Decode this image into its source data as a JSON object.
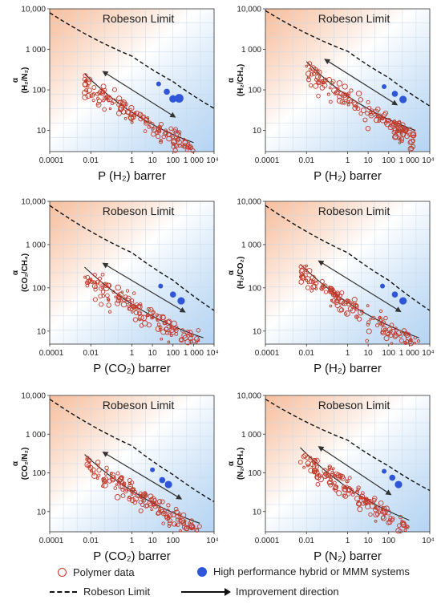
{
  "colors": {
    "polymer": "#c23a2a",
    "mmm": "#2f56d8",
    "upper_region": "#f6b38c",
    "lower_region": "#9cc6ef",
    "robeson_line": "#111111"
  },
  "shared": {
    "robeson_label": "Robeson Limit",
    "y_ticks": [
      "10",
      "100",
      "1 000",
      "10,000"
    ],
    "x_ticks": [
      "0.0001",
      "0.01",
      "1",
      "10",
      "100",
      "1 000",
      "10⁴"
    ],
    "x_ticks_short": [
      "0.0001",
      "0.01",
      "1",
      "10",
      "100",
      "10⁴"
    ]
  },
  "legend": {
    "polymer": "Polymer data",
    "mmm": "High performance hybrid or MMM systems",
    "robeson": "Robeson Limit",
    "arrow": "Improvement direction"
  },
  "chart_data": [
    {
      "type": "scatter",
      "xlabel": "P (H₂) barrer",
      "ylabel": "α (H₂/N₂)",
      "x_scale": "log",
      "y_scale": "log",
      "xlim": [
        0.0001,
        10000
      ],
      "ylim": [
        3,
        10000
      ],
      "robeson_limit": [
        [
          0.0001,
          8000
        ],
        [
          1,
          680
        ],
        [
          100,
          160
        ],
        [
          10000,
          35
        ]
      ],
      "hybrid_points": [
        [
          20,
          140
        ],
        [
          50,
          90
        ],
        [
          100,
          60
        ],
        [
          200,
          62
        ]
      ],
      "polymer_trend": [
        [
          0.005,
          250
        ],
        [
          1000,
          5
        ]
      ]
    },
    {
      "type": "scatter",
      "xlabel": "P (H₂) barrer",
      "ylabel": "α (H₂/CH₄)",
      "x_scale": "log",
      "y_scale": "log",
      "xlim": [
        0.0001,
        10000
      ],
      "ylim": [
        3,
        10000
      ],
      "robeson_limit": [
        [
          0.0001,
          9000
        ],
        [
          1,
          900
        ],
        [
          100,
          200
        ],
        [
          10000,
          40
        ]
      ],
      "hybrid_points": [
        [
          60,
          120
        ],
        [
          200,
          80
        ],
        [
          500,
          58
        ]
      ],
      "polymer_trend": [
        [
          0.01,
          500
        ],
        [
          2000,
          10
        ]
      ]
    },
    {
      "type": "scatter",
      "xlabel": "P (CO₂) barrer",
      "ylabel": "α (CO₂/CH₄)",
      "x_scale": "log",
      "y_scale": "log",
      "xlim": [
        0.0001,
        10000
      ],
      "ylim": [
        5,
        10000
      ],
      "robeson_limit": [
        [
          0.0001,
          8000
        ],
        [
          1,
          650
        ],
        [
          100,
          150
        ],
        [
          10000,
          30
        ]
      ],
      "hybrid_points": [
        [
          25,
          110
        ],
        [
          100,
          70
        ],
        [
          250,
          50
        ]
      ],
      "polymer_trend": [
        [
          0.005,
          300
        ],
        [
          3000,
          7
        ]
      ]
    },
    {
      "type": "scatter",
      "xlabel": "P (H₂) barrer",
      "ylabel": "α (H₂/CO₂)",
      "x_scale": "log",
      "y_scale": "log",
      "xlim": [
        0.0001,
        10000
      ],
      "ylim": [
        5,
        10000
      ],
      "robeson_limit": [
        [
          0.0001,
          8000
        ],
        [
          1,
          650
        ],
        [
          100,
          150
        ],
        [
          10000,
          30
        ]
      ],
      "hybrid_points": [
        [
          50,
          110
        ],
        [
          200,
          70
        ],
        [
          500,
          50
        ]
      ],
      "polymer_trend": [
        [
          0.005,
          350
        ],
        [
          3000,
          7
        ]
      ]
    },
    {
      "type": "scatter",
      "xlabel": "P (CO₂) barrer",
      "ylabel": "α (CO₂/N₂)",
      "x_scale": "log",
      "y_scale": "log",
      "xlim": [
        0.0001,
        10000
      ],
      "ylim": [
        3,
        10000
      ],
      "robeson_limit": [
        [
          0.0001,
          8000
        ],
        [
          1,
          500
        ],
        [
          100,
          90
        ],
        [
          10000,
          18
        ]
      ],
      "hybrid_points": [
        [
          10,
          120
        ],
        [
          30,
          65
        ],
        [
          60,
          50
        ]
      ],
      "polymer_trend": [
        [
          0.005,
          300
        ],
        [
          2000,
          5
        ]
      ]
    },
    {
      "type": "scatter",
      "xlabel": "P (N₂) barrer",
      "ylabel": "α (N₂/CH₄)",
      "x_scale": "log",
      "y_scale": "log",
      "xlim": [
        0.0001,
        10000
      ],
      "ylim": [
        3,
        10000
      ],
      "robeson_limit": [
        [
          0.0001,
          8000
        ],
        [
          1,
          700
        ],
        [
          100,
          150
        ],
        [
          10000,
          35
        ]
      ],
      "hybrid_points": [
        [
          60,
          110
        ],
        [
          150,
          75
        ],
        [
          300,
          50
        ]
      ],
      "polymer_trend": [
        [
          0.005,
          450
        ],
        [
          1000,
          6
        ]
      ]
    }
  ]
}
